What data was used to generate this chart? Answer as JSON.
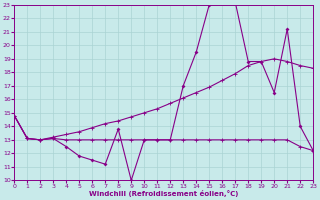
{
  "xlabel": "Windchill (Refroidissement éolien,°C)",
  "xlim": [
    0,
    23
  ],
  "ylim": [
    10,
    23
  ],
  "xticks": [
    0,
    1,
    2,
    3,
    4,
    5,
    6,
    7,
    8,
    9,
    10,
    11,
    12,
    13,
    14,
    15,
    16,
    17,
    18,
    19,
    20,
    21,
    22,
    23
  ],
  "yticks": [
    10,
    11,
    12,
    13,
    14,
    15,
    16,
    17,
    18,
    19,
    20,
    21,
    22,
    23
  ],
  "bg_color": "#c8eaea",
  "grid_color": "#aad4d4",
  "line_color": "#880088",
  "curve1_x": [
    0,
    1,
    2,
    3,
    4,
    5,
    6,
    7,
    8,
    9,
    10,
    11,
    12,
    13,
    14,
    15,
    16,
    17,
    18,
    19,
    20,
    21,
    22,
    23
  ],
  "curve1_y": [
    14.8,
    13.1,
    13.0,
    13.1,
    12.5,
    11.8,
    11.5,
    11.2,
    13.8,
    10.0,
    13.0,
    13.0,
    13.0,
    17.0,
    19.5,
    23.0,
    23.2,
    23.2,
    18.8,
    18.8,
    16.5,
    21.2,
    14.0,
    12.2
  ],
  "curve2_x": [
    0,
    1,
    2,
    3,
    4,
    5,
    6,
    7,
    8,
    9,
    10,
    11,
    12,
    13,
    14,
    15,
    16,
    17,
    18,
    19,
    20,
    21,
    22,
    23
  ],
  "curve2_y": [
    14.8,
    13.1,
    13.0,
    13.1,
    13.0,
    13.0,
    13.0,
    13.0,
    13.0,
    13.0,
    13.0,
    13.0,
    13.0,
    13.0,
    13.0,
    13.0,
    13.0,
    13.0,
    13.0,
    13.0,
    13.0,
    13.0,
    12.5,
    12.2
  ],
  "curve3_x": [
    0,
    1,
    2,
    3,
    4,
    5,
    6,
    7,
    8,
    9,
    10,
    11,
    12,
    13,
    14,
    15,
    16,
    17,
    18,
    19,
    20,
    21,
    22,
    23
  ],
  "curve3_y": [
    14.8,
    13.1,
    13.0,
    13.2,
    13.4,
    13.6,
    13.9,
    14.2,
    14.4,
    14.7,
    15.0,
    15.3,
    15.7,
    16.1,
    16.5,
    16.9,
    17.4,
    17.9,
    18.5,
    18.8,
    19.0,
    18.8,
    18.5,
    18.3
  ]
}
